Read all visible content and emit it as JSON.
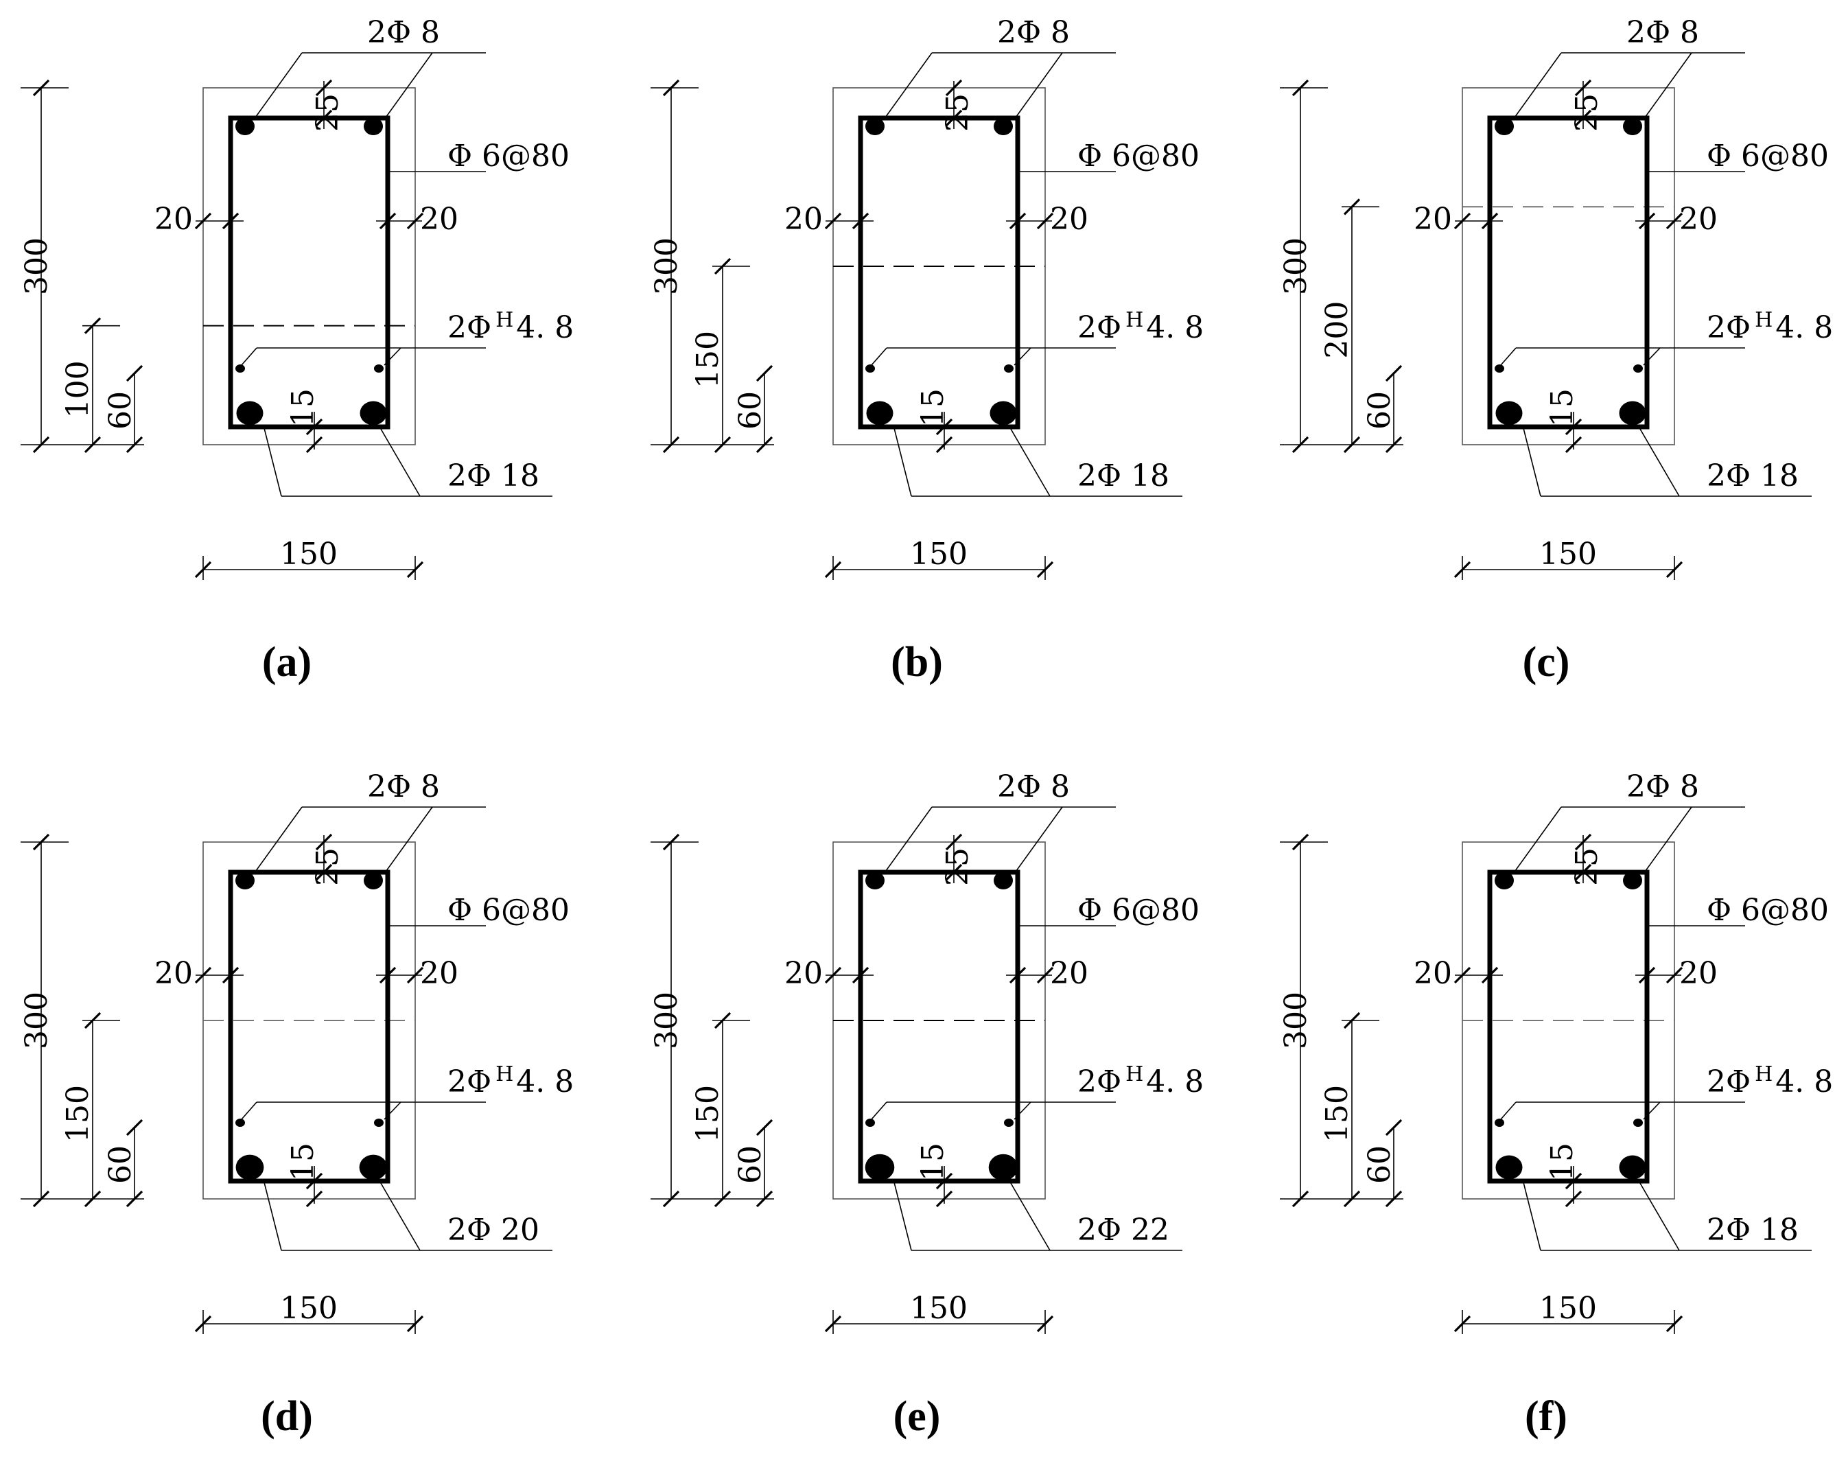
{
  "panels": [
    {
      "caption": "(a)",
      "dims": {
        "height": "300",
        "upper": "100",
        "lower": "60",
        "width": "150",
        "cover_left": "20",
        "cover_right": "20",
        "cover_top": "25",
        "cover_bottom": "15"
      },
      "labels": {
        "top_bars": "2Φ 8",
        "stirrup": "Φ 6@80",
        "wire_prefix": "2Φ",
        "wire_super": "H",
        "wire_size": "4. 8",
        "bottom_bars": "2Φ 18"
      },
      "dashed_depth_mm": 100,
      "bottom_bar_size_mm": 18
    },
    {
      "caption": "(b)",
      "dims": {
        "height": "300",
        "upper": "150",
        "lower": "60",
        "width": "150",
        "cover_left": "20",
        "cover_right": "20",
        "cover_top": "25",
        "cover_bottom": "15"
      },
      "labels": {
        "top_bars": "2Φ 8",
        "stirrup": "Φ 6@80",
        "wire_prefix": "2Φ",
        "wire_super": "H",
        "wire_size": "4. 8",
        "bottom_bars": "2Φ 18"
      },
      "dashed_depth_mm": 150,
      "bottom_bar_size_mm": 18
    },
    {
      "caption": "(c)",
      "dims": {
        "height": "300",
        "upper": "200",
        "lower": "60",
        "width": "150",
        "cover_left": "20",
        "cover_right": "20",
        "cover_top": "25",
        "cover_bottom": "15"
      },
      "labels": {
        "top_bars": "2Φ 8",
        "stirrup": "Φ 6@80",
        "wire_prefix": "2Φ",
        "wire_super": "H",
        "wire_size": "4. 8",
        "bottom_bars": "2Φ 18"
      },
      "dashed_depth_mm": 200,
      "bottom_bar_size_mm": 18
    },
    {
      "caption": "(d)",
      "dims": {
        "height": "300",
        "upper": "150",
        "lower": "60",
        "width": "150",
        "cover_left": "20",
        "cover_right": "20",
        "cover_top": "25",
        "cover_bottom": "15"
      },
      "labels": {
        "top_bars": "2Φ 8",
        "stirrup": "Φ 6@80",
        "wire_prefix": "2Φ",
        "wire_super": "H",
        "wire_size": "4. 8",
        "bottom_bars": "2Φ 20"
      },
      "dashed_depth_mm": 150,
      "bottom_bar_size_mm": 20
    },
    {
      "caption": "(e)",
      "dims": {
        "height": "300",
        "upper": "150",
        "lower": "60",
        "width": "150",
        "cover_left": "20",
        "cover_right": "20",
        "cover_top": "25",
        "cover_bottom": "15"
      },
      "labels": {
        "top_bars": "2Φ 8",
        "stirrup": "Φ 6@80",
        "wire_prefix": "2Φ",
        "wire_super": "H",
        "wire_size": "4. 8",
        "bottom_bars": "2Φ 22"
      },
      "dashed_depth_mm": 150,
      "bottom_bar_size_mm": 22
    },
    {
      "caption": "(f)",
      "dims": {
        "height": "300",
        "upper": "150",
        "lower": "60",
        "width": "150",
        "cover_left": "20",
        "cover_right": "20",
        "cover_top": "25",
        "cover_bottom": "15"
      },
      "labels": {
        "top_bars": "2Φ 8",
        "stirrup": "Φ 6@80",
        "wire_prefix": "2Φ",
        "wire_super": "H",
        "wire_size": "4. 8",
        "bottom_bars": "2Φ 18"
      },
      "dashed_depth_mm": 150,
      "bottom_bar_size_mm": 18
    }
  ]
}
